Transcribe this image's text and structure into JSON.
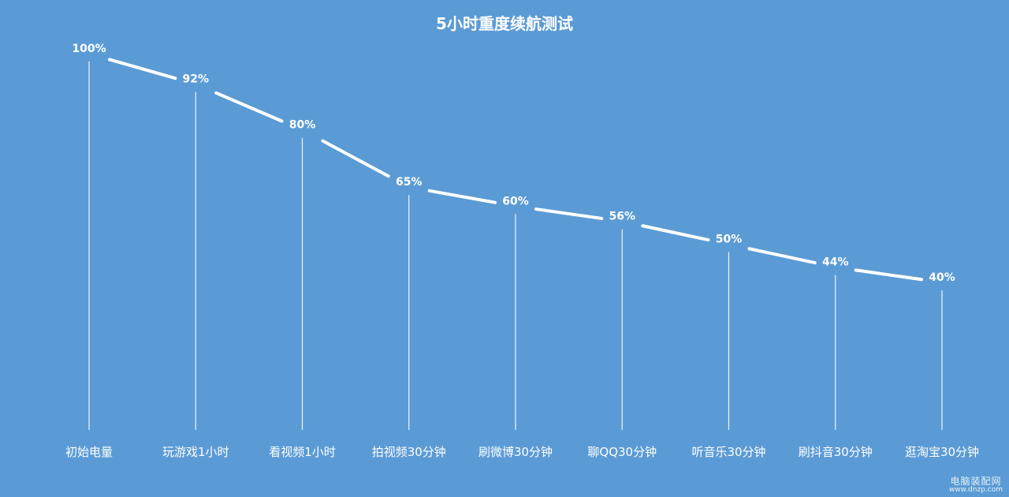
{
  "chart_data": {
    "type": "line",
    "title": "5小时重度续航测试",
    "xlabel": "",
    "ylabel": "",
    "categories": [
      "初始电量",
      "玩游戏1小时",
      "看视频1小时",
      "拍视频30分钟",
      "刷微博30分钟",
      "聊QQ30分钟",
      "听音乐30分钟",
      "刷抖音30分钟",
      "逛淘宝30分钟"
    ],
    "series": [
      {
        "values": [
          100,
          92,
          80,
          65,
          60,
          56,
          50,
          44,
          40
        ]
      }
    ],
    "value_labels": [
      "100%",
      "92%",
      "80%",
      "65%",
      "60%",
      "56%",
      "50%",
      "44%",
      "40%"
    ],
    "ylim": [
      40,
      100
    ],
    "grid": false,
    "legend": "none",
    "drop_lines": true,
    "colors": {
      "background": "#5b9bd5",
      "line": "#ffffff",
      "text": "#ffffff"
    }
  },
  "watermark": {
    "line1": "电脑装配网",
    "line2": "www.dnzp.com"
  }
}
